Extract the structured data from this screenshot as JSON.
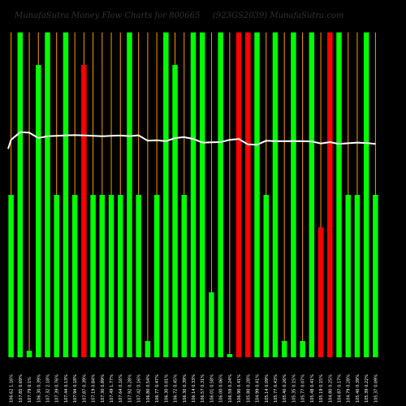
{
  "title": "MunafaSutra Money Flow Charts for 800665",
  "subtitle": "(923GS2039) MunafaSutra.com",
  "colors": {
    "background": "#000000",
    "up": "#00ff00",
    "down": "#ff0000",
    "orange_line": "#ff9900",
    "price_line": "#ffffff",
    "title_text": "#333333",
    "label_text": "#ffffff"
  },
  "chart_data": {
    "type": "bar",
    "ylim": [
      0,
      100
    ],
    "categories": [
      "106.62 1.16%",
      "107.85 0.69%",
      "107.79 0.1%",
      "106.30 0.39%",
      "107.32 2.18%",
      "107.39 0.76%",
      "107.44 0.13%",
      "107.94 0.18%",
      "107.87 0.39%",
      "107.19 0.84%",
      "107.30 0.89%",
      "107.49 1.77%",
      "107.64 0.16%",
      "107.92 0.28%",
      "107.42 0.16%",
      "106.80 0.54%",
      "106.77 0.47%",
      "106.30 0.01%",
      "106.72 0.45%",
      "106.30 0.39%",
      "106.14 0.33%",
      "106.57 0.31%",
      "106.01 0.58%",
      "106.00 0.06%",
      "106.59 0.24%",
      "106.90 0.41%",
      "105.80 0.28%",
      "104.99 0.41%",
      "105.14 0.09%",
      "105.77 0.43%",
      "105.40 0.26%",
      "105.35 0.15%",
      "105.77 0.07%",
      "105.48 0.41%",
      "105.19 0.15%",
      "104.80 0.25%",
      "104.87 0.17%",
      "104.79 0.28%",
      "105.40 0.39%",
      "105.39 0.22%",
      "105.37 0.09%"
    ],
    "series": [
      {
        "values": [
          50,
          100,
          2,
          90,
          100,
          50,
          100,
          50,
          90,
          50,
          50,
          50,
          50,
          100,
          50,
          5,
          50,
          100,
          90,
          50,
          100,
          100,
          20,
          100,
          1,
          100,
          100,
          100,
          50,
          100,
          5,
          100,
          5,
          100,
          40,
          100,
          100,
          50,
          50,
          100,
          50
        ],
        "colors": [
          "up",
          "up",
          "up",
          "up",
          "up",
          "up",
          "up",
          "up",
          "down",
          "up",
          "up",
          "up",
          "up",
          "up",
          "up",
          "up",
          "up",
          "up",
          "up",
          "up",
          "up",
          "up",
          "up",
          "up",
          "up",
          "down",
          "down",
          "up",
          "up",
          "up",
          "up",
          "up",
          "up",
          "up",
          "down",
          "down",
          "up",
          "up",
          "up",
          "up",
          "up"
        ],
        "orange": [
          true,
          true,
          true,
          true,
          true,
          true,
          true,
          true,
          true,
          true,
          true,
          true,
          true,
          true,
          true,
          true,
          true,
          true,
          true,
          true,
          true,
          true,
          true,
          true,
          true,
          true,
          true,
          true,
          true,
          true,
          true,
          true,
          true,
          true,
          true,
          true,
          true,
          true,
          true,
          true,
          true
        ]
      },
      {
        "values": [
          107.0,
          107.85,
          107.79,
          107.2,
          107.4,
          107.45,
          107.5,
          107.52,
          107.5,
          107.45,
          107.4,
          107.45,
          107.48,
          107.42,
          107.5,
          106.9,
          106.95,
          106.85,
          107.2,
          107.3,
          107.1,
          106.7,
          106.72,
          106.75,
          107.0,
          107.1,
          106.5,
          106.45,
          106.9,
          106.85,
          106.85,
          106.87,
          106.85,
          106.82,
          106.6,
          106.75,
          106.55,
          106.62,
          106.7,
          106.65,
          106.55
        ]
      }
    ]
  }
}
